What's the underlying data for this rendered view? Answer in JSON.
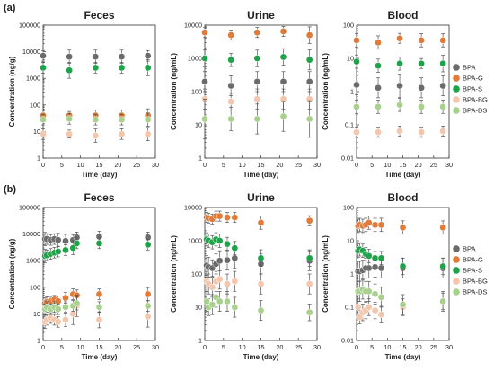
{
  "panels": [
    {
      "label": "(a)"
    },
    {
      "label": "(b)"
    }
  ],
  "legend": [
    "BPA",
    "BPA-G",
    "BPA-S",
    "BPA-BG",
    "BPA-DS"
  ],
  "series_colors": {
    "BPA": "#6b6b6b",
    "BPA-G": "#e07b39",
    "BPA-S": "#1fa34a",
    "BPA-BG": "#f4c7ad",
    "BPA-DS": "#a9d18e"
  },
  "chart_data": [
    {
      "type": "scatter",
      "panel": "(a)",
      "title": "Feces",
      "xlabel": "Time (day)",
      "ylabel": "Concentration (ng/g)",
      "yscale": "log",
      "ylim": [
        1,
        100000
      ],
      "xlim": [
        0,
        30
      ],
      "xticks": [
        "0",
        "5",
        "10",
        "15",
        "20",
        "25",
        "30"
      ],
      "yticks": [
        "1",
        "10",
        "100",
        "1000",
        "10000",
        "100000"
      ],
      "x": [
        0,
        7,
        14,
        21,
        28
      ],
      "series": [
        {
          "name": "BPA",
          "values": [
            7000,
            6500,
            6500,
            6500,
            7000
          ],
          "err": [
            0.2,
            0.25,
            0.25,
            0.25,
            0.2
          ]
        },
        {
          "name": "BPA-G",
          "values": [
            40,
            40,
            40,
            40,
            40
          ],
          "err": [
            0.2,
            0.15,
            0.2,
            0.2,
            0.25
          ]
        },
        {
          "name": "BPA-S",
          "values": [
            2500,
            2000,
            2500,
            2500,
            2500
          ],
          "err": [
            0.2,
            0.3,
            0.2,
            0.2,
            0.3
          ]
        },
        {
          "name": "BPA-BG",
          "values": [
            8,
            8,
            7,
            8,
            8
          ],
          "err": [
            0.2,
            0.15,
            0.25,
            0.2,
            0.25
          ]
        },
        {
          "name": "BPA-DS",
          "values": [
            28,
            30,
            28,
            28,
            28
          ],
          "err": [
            0.2,
            0.2,
            0.2,
            0.2,
            0.25
          ]
        }
      ]
    },
    {
      "type": "scatter",
      "panel": "(a)",
      "title": "Urine",
      "xlabel": "Time (day)",
      "ylabel": "Concentration (ng/mL)",
      "yscale": "log",
      "ylim": [
        1,
        10000
      ],
      "xlim": [
        0,
        30
      ],
      "xticks": [
        "0",
        "5",
        "10",
        "15",
        "20",
        "25",
        "30"
      ],
      "yticks": [
        "1",
        "10",
        "100",
        "1000",
        "10000"
      ],
      "x": [
        0,
        7,
        14,
        21,
        28
      ],
      "series": [
        {
          "name": "BPA",
          "values": [
            200,
            150,
            200,
            200,
            200
          ],
          "err": [
            0.3,
            0.3,
            0.3,
            0.3,
            0.3
          ]
        },
        {
          "name": "BPA-G",
          "values": [
            6000,
            5000,
            6000,
            6500,
            5000
          ],
          "err": [
            0.15,
            0.15,
            0.15,
            0.15,
            0.25
          ]
        },
        {
          "name": "BPA-S",
          "values": [
            1000,
            900,
            1000,
            1100,
            900
          ],
          "err": [
            0.25,
            0.2,
            0.25,
            0.25,
            0.3
          ]
        },
        {
          "name": "BPA-BG",
          "values": [
            60,
            50,
            60,
            60,
            60
          ],
          "err": [
            0.3,
            0.25,
            0.3,
            0.3,
            0.3
          ]
        },
        {
          "name": "BPA-DS",
          "values": [
            15,
            15,
            15,
            18,
            15
          ],
          "err": [
            0.6,
            0.35,
            0.45,
            0.45,
            0.55
          ]
        }
      ]
    },
    {
      "type": "scatter",
      "panel": "(a)",
      "title": "Blood",
      "xlabel": "Time (day)",
      "ylabel": "Concentration (ng/mL)",
      "yscale": "log",
      "ylim": [
        0.01,
        100
      ],
      "xlim": [
        0,
        30
      ],
      "xticks": [
        "0",
        "5",
        "10",
        "15",
        "20",
        "25",
        "30"
      ],
      "yticks": [
        "0.01",
        "0.1",
        "1",
        "10",
        "100"
      ],
      "x": [
        0,
        7,
        14,
        21,
        28
      ],
      "series": [
        {
          "name": "BPA",
          "values": [
            1.6,
            1.3,
            1.5,
            1.3,
            1.5
          ],
          "err": [
            0.3,
            0.3,
            0.35,
            0.3,
            0.3
          ]
        },
        {
          "name": "BPA-G",
          "values": [
            35,
            30,
            40,
            35,
            35
          ],
          "err": [
            0.2,
            0.2,
            0.15,
            0.2,
            0.2
          ]
        },
        {
          "name": "BPA-S",
          "values": [
            8,
            6,
            7,
            7,
            7
          ],
          "err": [
            0.2,
            0.2,
            0.2,
            0.15,
            0.25
          ]
        },
        {
          "name": "BPA-BG",
          "values": [
            0.06,
            0.06,
            0.065,
            0.06,
            0.065
          ],
          "err": [
            0.15,
            0.15,
            0.15,
            0.15,
            0.15
          ]
        },
        {
          "name": "BPA-DS",
          "values": [
            0.35,
            0.35,
            0.4,
            0.35,
            0.35
          ],
          "err": [
            0.2,
            0.2,
            0.2,
            0.2,
            0.2
          ]
        }
      ]
    },
    {
      "type": "scatter",
      "panel": "(b)",
      "title": "Feces",
      "xlabel": "Time (day)",
      "ylabel": "Concentration (ng/g)",
      "yscale": "log",
      "ylim": [
        1,
        100000
      ],
      "xlim": [
        0,
        30
      ],
      "xticks": [
        "0",
        "5",
        "10",
        "15",
        "20",
        "25",
        "30"
      ],
      "yticks": [
        "1",
        "10",
        "100",
        "1000",
        "10000",
        "100000"
      ],
      "x": [
        0.5,
        1,
        2,
        3,
        4,
        6,
        8,
        9,
        15,
        28
      ],
      "series": [
        {
          "name": "BPA",
          "values": [
            6500,
            6500,
            6000,
            6500,
            6000,
            5500,
            6000,
            7500,
            8000,
            7500
          ],
          "err": [
            0.25,
            0.2,
            0.2,
            0.2,
            0.25,
            0.25,
            0.2,
            0.2,
            0.2,
            0.2
          ]
        },
        {
          "name": "BPA-G",
          "values": [
            25,
            28,
            30,
            35,
            30,
            40,
            55,
            50,
            55,
            55
          ],
          "err": [
            0.2,
            0.2,
            0.15,
            0.15,
            0.2,
            0.2,
            0.2,
            0.2,
            0.2,
            0.25
          ]
        },
        {
          "name": "BPA-S",
          "values": [
            1500,
            1600,
            1800,
            2000,
            2200,
            2500,
            3000,
            4500,
            4500,
            4000
          ],
          "err": [
            0.25,
            0.2,
            0.2,
            0.2,
            0.2,
            0.2,
            0.25,
            0.2,
            0.2,
            0.2
          ]
        },
        {
          "name": "BPA-BG",
          "values": [
            5,
            6,
            7,
            6,
            5,
            6,
            10,
            20,
            6,
            8
          ],
          "err": [
            0.25,
            0.2,
            0.2,
            0.2,
            0.2,
            0.25,
            0.4,
            0.4,
            0.3,
            0.4
          ]
        },
        {
          "name": "BPA-DS",
          "values": [
            15,
            18,
            15,
            18,
            15,
            18,
            20,
            25,
            18,
            20
          ],
          "err": [
            0.2,
            0.2,
            0.2,
            0.2,
            0.2,
            0.2,
            0.2,
            0.25,
            0.2,
            0.2
          ]
        }
      ]
    },
    {
      "type": "scatter",
      "panel": "(b)",
      "title": "Urine",
      "xlabel": "Time (day)",
      "ylabel": "Concentration (ng/mL)",
      "yscale": "log",
      "ylim": [
        1,
        10000
      ],
      "xlim": [
        0,
        30
      ],
      "xticks": [
        "0",
        "5",
        "10",
        "15",
        "20",
        "25",
        "30"
      ],
      "yticks": [
        "1",
        "10",
        "100",
        "1000",
        "10000"
      ],
      "x": [
        0.5,
        1,
        2,
        3,
        4,
        6,
        8,
        15,
        28
      ],
      "series": [
        {
          "name": "BPA",
          "values": [
            180,
            160,
            150,
            200,
            250,
            260,
            300,
            200,
            250
          ],
          "err": [
            0.3,
            0.3,
            0.25,
            0.3,
            0.3,
            0.3,
            0.3,
            0.3,
            0.3
          ]
        },
        {
          "name": "BPA-G",
          "values": [
            5000,
            4800,
            4500,
            5500,
            5500,
            5000,
            5000,
            3500,
            4000
          ],
          "err": [
            0.15,
            0.15,
            0.15,
            0.15,
            0.15,
            0.15,
            0.15,
            0.2,
            0.15
          ]
        },
        {
          "name": "BPA-S",
          "values": [
            1100,
            1000,
            900,
            1100,
            1000,
            800,
            600,
            300,
            300
          ],
          "err": [
            0.2,
            0.2,
            0.2,
            0.2,
            0.2,
            0.2,
            0.2,
            0.25,
            0.25
          ]
        },
        {
          "name": "BPA-BG",
          "values": [
            60,
            50,
            40,
            60,
            70,
            50,
            60,
            50,
            50
          ],
          "err": [
            0.3,
            0.3,
            0.3,
            0.3,
            0.3,
            0.3,
            0.3,
            0.3,
            0.3
          ]
        },
        {
          "name": "BPA-DS",
          "values": [
            15,
            10,
            12,
            20,
            15,
            15,
            10,
            8,
            7
          ],
          "err": [
            0.3,
            0.25,
            0.3,
            0.3,
            0.3,
            0.3,
            0.3,
            0.3,
            0.25
          ]
        }
      ]
    },
    {
      "type": "scatter",
      "panel": "(b)",
      "title": "Blood",
      "xlabel": "Time (day)",
      "ylabel": "Concentration (ng/mL)",
      "yscale": "log",
      "ylim": [
        0.01,
        100
      ],
      "xlim": [
        0,
        30
      ],
      "xticks": [
        "0",
        "5",
        "10",
        "15",
        "20",
        "25",
        "30"
      ],
      "yticks": [
        "0.01",
        "0.1",
        "1",
        "10",
        "100"
      ],
      "x": [
        0.5,
        1,
        2,
        3,
        4,
        6,
        8,
        15,
        28
      ],
      "series": [
        {
          "name": "BPA",
          "values": [
            1.2,
            1.2,
            1.3,
            1.5,
            1.5,
            1.6,
            1.5,
            1.5,
            1.5
          ],
          "err": [
            0.3,
            0.3,
            0.3,
            0.3,
            0.3,
            0.3,
            0.3,
            0.3,
            0.3
          ]
        },
        {
          "name": "BPA-G",
          "values": [
            28,
            30,
            28,
            30,
            35,
            30,
            30,
            25,
            25
          ],
          "err": [
            0.2,
            0.2,
            0.2,
            0.2,
            0.2,
            0.2,
            0.2,
            0.2,
            0.2
          ]
        },
        {
          "name": "BPA-S",
          "values": [
            5,
            5.5,
            5,
            4,
            3.5,
            3,
            3,
            1.7,
            1.7
          ],
          "err": [
            0.2,
            0.2,
            0.2,
            0.2,
            0.2,
            0.2,
            0.2,
            0.25,
            0.25
          ]
        },
        {
          "name": "BPA-BG",
          "values": [
            0.1,
            0.05,
            0.07,
            0.08,
            0.1,
            0.08,
            0.06,
            0.1,
            0.15
          ],
          "err": [
            0.25,
            0.2,
            0.25,
            0.25,
            0.25,
            0.25,
            0.25,
            0.25,
            0.25
          ]
        },
        {
          "name": "BPA-DS",
          "values": [
            0.3,
            0.3,
            0.35,
            0.3,
            0.3,
            0.25,
            0.2,
            0.12,
            0.15
          ],
          "err": [
            0.3,
            0.3,
            0.3,
            0.3,
            0.3,
            0.3,
            0.3,
            0.3,
            0.3
          ]
        }
      ]
    }
  ]
}
